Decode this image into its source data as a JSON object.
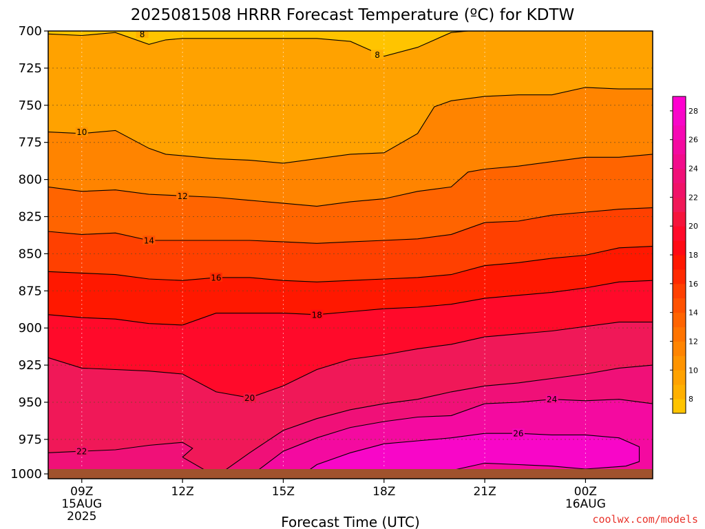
{
  "chart_data": {
    "type": "heatmap",
    "title": "2025081508 HRRR Forecast Temperature (ºC) for KDTW",
    "xlabel": "Forecast Time (UTC)",
    "ylabel": "",
    "y_scale": "pressure (hPa), inverted",
    "ylim": [
      1000,
      700
    ],
    "y_ticks": [
      "700",
      "725",
      "750",
      "775",
      "800",
      "825",
      "850",
      "875",
      "900",
      "925",
      "950",
      "975",
      "1000"
    ],
    "x_range_utc": [
      "2025-08-15 08Z",
      "2025-08-16 02Z"
    ],
    "x_ticks": [
      {
        "label": "09Z",
        "sub": [
          "15AUG",
          "2025"
        ],
        "hour": 1
      },
      {
        "label": "12Z",
        "sub": [],
        "hour": 4
      },
      {
        "label": "15Z",
        "sub": [],
        "hour": 7
      },
      {
        "label": "18Z",
        "sub": [],
        "hour": 10
      },
      {
        "label": "21Z",
        "sub": [],
        "hour": 13
      },
      {
        "label": "00Z",
        "sub": [
          "16AUG"
        ],
        "hour": 16
      }
    ],
    "colorbar": {
      "labels": [
        "8",
        "10",
        "12",
        "14",
        "16",
        "18",
        "20",
        "22",
        "24",
        "26",
        "28"
      ],
      "bins": [
        {
          "from": 7,
          "to": 8,
          "color": "#ffc400"
        },
        {
          "from": 8,
          "to": 9,
          "color": "#ffb000"
        },
        {
          "from": 9,
          "to": 10,
          "color": "#ffa200"
        },
        {
          "from": 10,
          "to": 11,
          "color": "#ff9400"
        },
        {
          "from": 11,
          "to": 12,
          "color": "#ff8400"
        },
        {
          "from": 12,
          "to": 13,
          "color": "#ff7400"
        },
        {
          "from": 13,
          "to": 14,
          "color": "#ff6400"
        },
        {
          "from": 14,
          "to": 15,
          "color": "#ff5200"
        },
        {
          "from": 15,
          "to": 16,
          "color": "#ff4000"
        },
        {
          "from": 16,
          "to": 17,
          "color": "#ff2a00"
        },
        {
          "from": 17,
          "to": 18,
          "color": "#ff1800"
        },
        {
          "from": 18,
          "to": 19,
          "color": "#ff0a14"
        },
        {
          "from": 19,
          "to": 20,
          "color": "#ff0a2a"
        },
        {
          "from": 20,
          "to": 21,
          "color": "#f5143c"
        },
        {
          "from": 21,
          "to": 22,
          "color": "#f01858"
        },
        {
          "from": 22,
          "to": 23,
          "color": "#f01268"
        },
        {
          "from": 23,
          "to": 24,
          "color": "#f01078"
        },
        {
          "from": 24,
          "to": 25,
          "color": "#f20c8c"
        },
        {
          "from": 25,
          "to": 26,
          "color": "#f40aa0"
        },
        {
          "from": 26,
          "to": 27,
          "color": "#f608b4"
        },
        {
          "from": 27,
          "to": 28,
          "color": "#f806c8"
        },
        {
          "from": 28,
          "to": 29,
          "color": "#ff00d0"
        }
      ]
    },
    "background_color": "#ffa200",
    "ground_color": "#a0522d",
    "contour_interval_c": 2,
    "isotherms": [
      {
        "value": 8,
        "label": "8",
        "label_positions": [
          {
            "hour": 2.8,
            "pres": 702
          },
          {
            "hour": 9.8,
            "pres": 716
          }
        ],
        "points": [
          [
            0,
            702
          ],
          [
            1,
            703
          ],
          [
            2,
            701
          ],
          [
            3,
            709
          ],
          [
            3.5,
            706
          ],
          [
            4,
            705
          ],
          [
            5,
            705
          ],
          [
            6,
            705
          ],
          [
            7,
            705
          ],
          [
            8,
            705
          ],
          [
            9,
            707
          ],
          [
            10,
            717
          ],
          [
            11,
            711
          ],
          [
            12,
            701
          ],
          [
            13,
            699
          ],
          [
            14,
            698
          ],
          [
            15,
            698
          ]
        ]
      },
      {
        "value": 10,
        "label": "10",
        "label_positions": [
          {
            "hour": 1.0,
            "pres": 768
          }
        ],
        "points": [
          [
            0,
            768
          ],
          [
            1,
            769
          ],
          [
            2,
            767
          ],
          [
            3,
            779
          ],
          [
            3.5,
            783
          ],
          [
            4,
            784
          ],
          [
            5,
            786
          ],
          [
            6,
            787
          ],
          [
            7,
            789
          ],
          [
            8,
            786
          ],
          [
            9,
            783
          ],
          [
            10,
            782
          ],
          [
            11,
            769
          ],
          [
            11.5,
            751
          ],
          [
            12,
            747
          ],
          [
            13,
            744
          ],
          [
            14,
            743
          ],
          [
            15,
            743
          ],
          [
            16,
            738
          ],
          [
            17,
            739
          ],
          [
            18,
            739
          ]
        ]
      },
      {
        "value": 12,
        "label": "12",
        "label_positions": [
          {
            "hour": 4.0,
            "pres": 811
          }
        ],
        "points": [
          [
            0,
            805
          ],
          [
            1,
            808
          ],
          [
            2,
            807
          ],
          [
            3,
            810
          ],
          [
            4,
            811
          ],
          [
            5,
            812
          ],
          [
            6,
            814
          ],
          [
            7,
            816
          ],
          [
            8,
            818
          ],
          [
            9,
            815
          ],
          [
            10,
            813
          ],
          [
            11,
            808
          ],
          [
            12,
            805
          ],
          [
            12.5,
            795
          ],
          [
            13,
            793
          ],
          [
            14,
            791
          ],
          [
            15,
            788
          ],
          [
            16,
            785
          ],
          [
            17,
            785
          ],
          [
            18,
            783
          ]
        ]
      },
      {
        "value": 14,
        "label": "14",
        "label_positions": [
          {
            "hour": 3.0,
            "pres": 841
          }
        ],
        "points": [
          [
            0,
            835
          ],
          [
            1,
            837
          ],
          [
            2,
            836
          ],
          [
            3,
            841
          ],
          [
            4,
            841
          ],
          [
            5,
            841
          ],
          [
            6,
            841
          ],
          [
            7,
            842
          ],
          [
            8,
            843
          ],
          [
            9,
            842
          ],
          [
            10,
            841
          ],
          [
            11,
            840
          ],
          [
            12,
            837
          ],
          [
            13,
            829
          ],
          [
            14,
            828
          ],
          [
            15,
            824
          ],
          [
            16,
            822
          ],
          [
            17,
            820
          ],
          [
            18,
            819
          ]
        ]
      },
      {
        "value": 16,
        "label": "16",
        "label_positions": [
          {
            "hour": 5.0,
            "pres": 866
          }
        ],
        "points": [
          [
            0,
            862
          ],
          [
            1,
            863
          ],
          [
            2,
            864
          ],
          [
            3,
            867
          ],
          [
            4,
            868
          ],
          [
            5,
            866
          ],
          [
            6,
            866
          ],
          [
            7,
            868
          ],
          [
            8,
            869
          ],
          [
            9,
            868
          ],
          [
            10,
            867
          ],
          [
            11,
            866
          ],
          [
            12,
            864
          ],
          [
            13,
            858
          ],
          [
            14,
            856
          ],
          [
            15,
            853
          ],
          [
            16,
            851
          ],
          [
            17,
            846
          ],
          [
            18,
            845
          ]
        ]
      },
      {
        "value": 18,
        "label": "18",
        "label_positions": [
          {
            "hour": 8.0,
            "pres": 891
          }
        ],
        "points": [
          [
            0,
            891
          ],
          [
            1,
            893
          ],
          [
            2,
            894
          ],
          [
            3,
            897
          ],
          [
            4,
            898
          ],
          [
            5,
            890
          ],
          [
            6,
            890
          ],
          [
            7,
            890
          ],
          [
            8,
            891
          ],
          [
            9,
            889
          ],
          [
            10,
            887
          ],
          [
            11,
            886
          ],
          [
            12,
            884
          ],
          [
            13,
            880
          ],
          [
            14,
            878
          ],
          [
            15,
            876
          ],
          [
            16,
            873
          ],
          [
            17,
            869
          ],
          [
            18,
            868
          ]
        ]
      },
      {
        "value": 20,
        "label": "20",
        "label_positions": [
          {
            "hour": 6.0,
            "pres": 947
          }
        ],
        "points": [
          [
            0,
            920
          ],
          [
            1,
            927
          ],
          [
            2,
            928
          ],
          [
            3,
            929
          ],
          [
            4,
            931
          ],
          [
            5,
            943
          ],
          [
            6,
            947
          ],
          [
            7,
            939
          ],
          [
            8,
            928
          ],
          [
            9,
            921
          ],
          [
            10,
            918
          ],
          [
            11,
            914
          ],
          [
            12,
            911
          ],
          [
            13,
            906
          ],
          [
            14,
            904
          ],
          [
            15,
            902
          ],
          [
            16,
            899
          ],
          [
            17,
            896
          ],
          [
            18,
            896
          ]
        ]
      },
      {
        "value": 22,
        "label": "22",
        "label_positions": [
          {
            "hour": 1.0,
            "pres": 983
          }
        ],
        "points": [
          [
            0,
            984
          ],
          [
            1,
            983
          ],
          [
            2,
            982
          ],
          [
            3,
            979
          ],
          [
            4,
            977
          ],
          [
            4.3,
            981
          ],
          [
            4,
            987
          ],
          [
            5,
            1000
          ],
          [
            6,
            984
          ],
          [
            7,
            969
          ],
          [
            8,
            961
          ],
          [
            9,
            955
          ],
          [
            10,
            951
          ],
          [
            11,
            948
          ],
          [
            12,
            943
          ],
          [
            13,
            939
          ],
          [
            14,
            937
          ],
          [
            15,
            934
          ],
          [
            16,
            931
          ],
          [
            17,
            927
          ],
          [
            18,
            925
          ]
        ]
      },
      {
        "value": 24,
        "label": "24",
        "label_positions": [
          {
            "hour": 15.0,
            "pres": 948
          }
        ],
        "points": [
          [
            6,
            1000
          ],
          [
            7,
            983
          ],
          [
            8,
            974
          ],
          [
            9,
            967
          ],
          [
            10,
            963
          ],
          [
            11,
            960
          ],
          [
            12,
            959
          ],
          [
            13,
            951
          ],
          [
            14,
            950
          ],
          [
            15,
            948
          ],
          [
            16,
            949
          ],
          [
            17,
            948
          ],
          [
            18,
            951
          ]
        ]
      },
      {
        "value": 26,
        "label": "26",
        "label_positions": [
          {
            "hour": 14.0,
            "pres": 971
          }
        ],
        "points": [
          [
            7.5,
            1000
          ],
          [
            8,
            992
          ],
          [
            9,
            984
          ],
          [
            10,
            978
          ],
          [
            11,
            976
          ],
          [
            12,
            974
          ],
          [
            13,
            971
          ],
          [
            14,
            971
          ],
          [
            15,
            972
          ],
          [
            16,
            972
          ],
          [
            17,
            974
          ],
          [
            17.6,
            980
          ],
          [
            17.6,
            990
          ],
          [
            17.2,
            993
          ],
          [
            16,
            995
          ],
          [
            15,
            993
          ],
          [
            14,
            992
          ],
          [
            13,
            991
          ],
          [
            12,
            996
          ],
          [
            11,
            999
          ],
          [
            10.5,
            1000
          ]
        ]
      }
    ],
    "grid": true,
    "grid_style": "dotted"
  },
  "credit": "coolwx.com/models"
}
